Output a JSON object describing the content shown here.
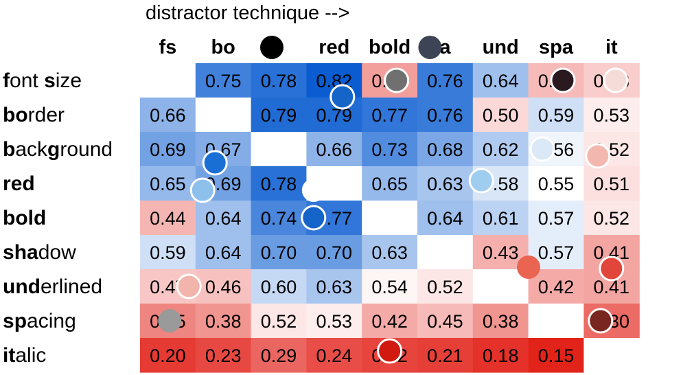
{
  "chart_data": {
    "type": "heatmap",
    "title": "distractor technique -->",
    "columns": [
      "fs",
      "bo",
      "",
      "red",
      "bold",
      "a",
      "und",
      "spa",
      "it"
    ],
    "rows": [
      {
        "label": "font size",
        "bold_flags": [
          1,
          0,
          0,
          0,
          0,
          1,
          0,
          0,
          0
        ]
      },
      {
        "label": "border",
        "bold_flags": [
          1,
          1,
          0,
          0,
          0,
          0
        ]
      },
      {
        "label": "background",
        "bold_flags": [
          1,
          0,
          0,
          0,
          1,
          0,
          0,
          0,
          0,
          0
        ]
      },
      {
        "label": "red",
        "bold_flags": [
          1,
          1,
          1
        ]
      },
      {
        "label": "bold",
        "bold_flags": [
          1,
          1,
          1,
          1
        ]
      },
      {
        "label": "shadow",
        "bold_flags": [
          1,
          1,
          1,
          0,
          0,
          0
        ]
      },
      {
        "label": "underlined",
        "bold_flags": [
          1,
          1,
          1,
          0,
          0,
          0,
          0,
          0,
          0,
          0
        ]
      },
      {
        "label": "spacing",
        "bold_flags": [
          1,
          1,
          0,
          0,
          0,
          0,
          0
        ]
      },
      {
        "label": "italic",
        "bold_flags": [
          1,
          1,
          0,
          0,
          0,
          0
        ]
      }
    ],
    "values": [
      [
        null,
        0.75,
        0.78,
        0.82,
        0.4,
        0.76,
        0.64,
        0.45,
        0.48
      ],
      [
        0.66,
        null,
        0.79,
        0.79,
        0.77,
        0.76,
        0.5,
        0.59,
        0.53
      ],
      [
        0.69,
        0.67,
        null,
        0.66,
        0.73,
        0.68,
        0.62,
        0.56,
        0.52
      ],
      [
        0.65,
        0.69,
        0.78,
        null,
        0.65,
        0.63,
        0.58,
        0.55,
        0.51
      ],
      [
        0.44,
        0.64,
        0.74,
        0.77,
        null,
        0.64,
        0.61,
        0.57,
        0.52
      ],
      [
        0.59,
        0.64,
        0.7,
        0.7,
        0.63,
        null,
        0.43,
        0.57,
        0.41
      ],
      [
        0.47,
        0.46,
        0.6,
        0.63,
        0.54,
        0.52,
        null,
        0.42,
        0.41
      ],
      [
        0.35,
        0.38,
        0.52,
        0.53,
        0.42,
        0.45,
        0.38,
        null,
        0.3
      ],
      [
        0.2,
        0.23,
        0.29,
        0.24,
        0.22,
        0.21,
        0.18,
        0.15,
        null
      ]
    ],
    "visible_text": [
      [
        null,
        "0.75",
        "0.78",
        "0.82",
        "0.40",
        "0.76",
        "0.64",
        "0.45",
        "0.48"
      ],
      [
        "0.66",
        null,
        "0.79",
        "0.79",
        "0.77",
        "0.76",
        "0.50",
        "0.59",
        "0.53"
      ],
      [
        "0.69",
        "0.67",
        null,
        "0.66",
        "0.73",
        "0.68",
        "0.62",
        "0.56",
        "0.52"
      ],
      [
        "0.65",
        "0.69",
        "0.78",
        null,
        "0.65",
        "0.63",
        "0.58",
        "0.55",
        "0.51"
      ],
      [
        "0.44",
        "0.64",
        "0.74",
        "0.77",
        null,
        "0.64",
        "0.61",
        "0.57",
        "0.52"
      ],
      [
        "0.59",
        "0.64",
        "0.70",
        "0.70",
        "0.63",
        null,
        "0.43",
        "0.57",
        "0.41"
      ],
      [
        "0.47",
        "0.46",
        "0.60",
        "0.63",
        "0.54",
        "0.52",
        null,
        "0.42",
        "0.41"
      ],
      [
        "0.35",
        "0.38",
        "0.52",
        "0.53",
        "0.42",
        "0.45",
        "0.38",
        null,
        "0.30"
      ],
      [
        "0.20",
        "0.23",
        "0.29",
        "0.24",
        "0.22",
        "0.21",
        "0.18",
        "0.15",
        null
      ]
    ],
    "color_scale": {
      "low": "#e2231a",
      "mid": "#ffffff",
      "high": "#0a5cd0",
      "midpoint": 0.55
    },
    "diagonal_color": "#ffffff",
    "grid": false,
    "legend": "none",
    "overlay_markers": [
      {
        "row": 0,
        "col": 2,
        "color": "#000000",
        "ring": false
      },
      {
        "row": 0,
        "col": 5,
        "color": "#3c4455",
        "ring": false
      },
      {
        "row": 0,
        "col": 3,
        "color": "#1565c8",
        "ring": true
      },
      {
        "row": 0,
        "col": 4,
        "color": "#707070",
        "ring": true
      },
      {
        "row": 0,
        "col": 7,
        "color": "#2a1a1f",
        "ring": true
      },
      {
        "row": 0,
        "col": 8,
        "color": "#f6dcd8",
        "ring": true
      },
      {
        "row": 2,
        "col": 1,
        "color": "#1a6fd4",
        "ring": true
      },
      {
        "row": 2,
        "col": 7,
        "color": "#dbe9f6",
        "ring": true
      },
      {
        "row": 2,
        "col": 8,
        "color": "#f2b8b0",
        "ring": true
      },
      {
        "row": 3,
        "col": 1,
        "color": "#8ec0ec",
        "ring": true
      },
      {
        "row": 3,
        "col": 3,
        "color": "#ffffff",
        "ring": false
      },
      {
        "row": 3,
        "col": 6,
        "color": "#9fcdf0",
        "ring": true
      },
      {
        "row": 4,
        "col": 3,
        "color": "#1564c9",
        "ring": true
      },
      {
        "row": 5,
        "col": 7,
        "color": "#ea6452",
        "ring": false
      },
      {
        "row": 5,
        "col": 8,
        "color": "#e2463a",
        "ring": true
      },
      {
        "row": 6,
        "col": 1,
        "color": "#f2b4ab",
        "ring": true
      },
      {
        "row": 7,
        "col": 1,
        "color": "#9a9a9a",
        "ring": false
      },
      {
        "row": 7,
        "col": 8,
        "color": "#7a2620",
        "ring": true
      },
      {
        "row": 8,
        "col": 4,
        "color": "#d2190f",
        "ring": true
      }
    ]
  }
}
